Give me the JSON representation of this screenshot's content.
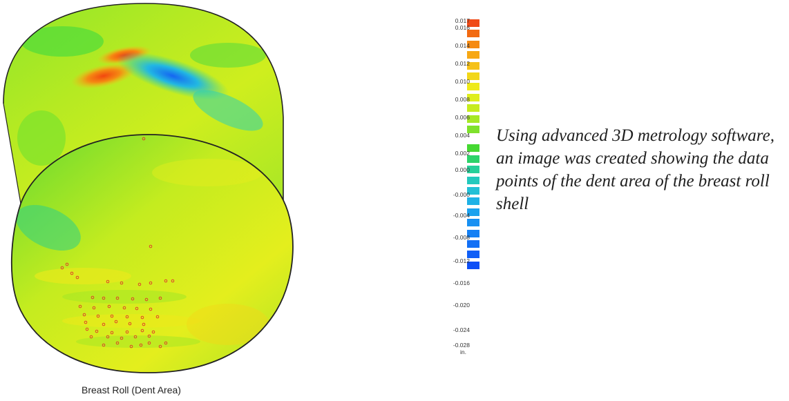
{
  "figure": {
    "caption": "Breast Roll (Dent Area)",
    "colormap": [
      "#f04a16",
      "#f26a12",
      "#f58a12",
      "#f7a814",
      "#f5c117",
      "#f2d718",
      "#eeea1a",
      "#dfee1c",
      "#c6ec1f",
      "#a6e825",
      "#7fe12c",
      "#45d832",
      "#2dd36a",
      "#27d09a",
      "#23c9bd",
      "#22c0d6",
      "#1fb2e6",
      "#1ca2ee",
      "#1890f2",
      "#1580f4",
      "#1270f5",
      "#105ff6",
      "#0d4ff6"
    ]
  },
  "legend": {
    "ticks": [
      "0.017",
      "0.016",
      "0.014",
      "0.012",
      "0.010",
      "0.008",
      "0.006",
      "0.004",
      "0.002",
      "0.000",
      "-0.000",
      "-0.004",
      "-0.008",
      "-0.012",
      "-0.016",
      "-0.020",
      "-0.024",
      "-0.028"
    ],
    "unit": "in."
  },
  "description": "Using advanced 3D metrology software, an image was created showing the data points of the dent area of the breast roll shell"
}
